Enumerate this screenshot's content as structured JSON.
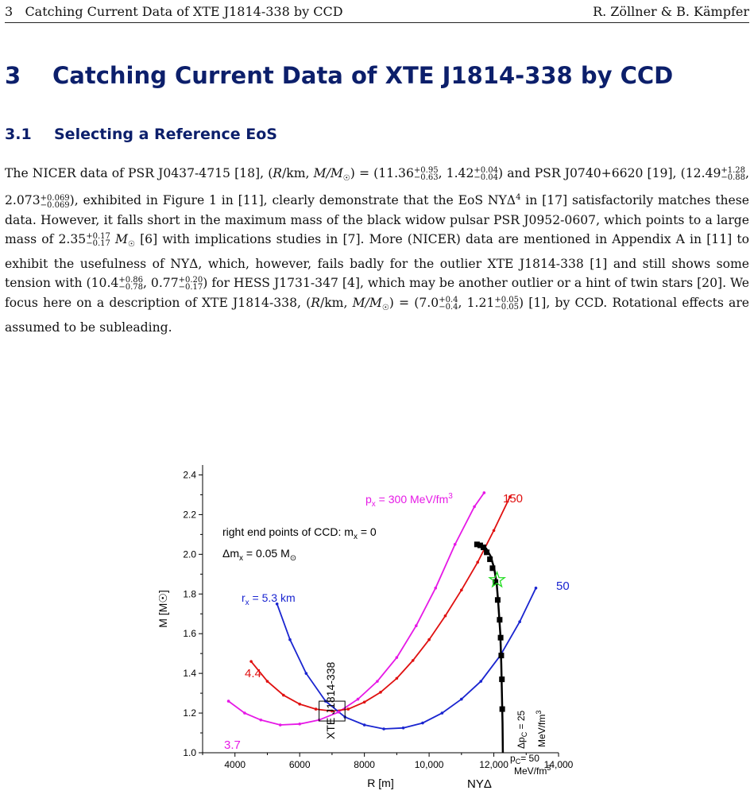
{
  "running_header": {
    "left": "3   Catching Current Data of XTE J1814-338 by CCD",
    "right": "R. Zöllner & B. Kämpfer"
  },
  "section": {
    "number": "3",
    "title": "Catching Current Data of XTE J1814-338 by CCD"
  },
  "subsection": {
    "number": "3.1",
    "title": "Selecting a Reference EoS"
  },
  "paragraph": {
    "t1": "The NICER data of PSR J0437-4715 [18], (",
    "t2": "R",
    "t3": "/km, ",
    "t4": "M/M",
    "t5": "☉",
    "t6": ") = (11.36",
    "s1up": "+0.95",
    "s1dn": "−0.63",
    "t7": ", 1.42",
    "s2up": "+0.04",
    "s2dn": "−0.04",
    "t8": ") and PSR J0740+6620 [19], (12.49",
    "s3up": "+1.28",
    "s3dn": "−0.88",
    "t9": ", 2.073",
    "s4up": "+0.069",
    "s4dn": "−0.069",
    "t10": "), exhibited in Figure 1 in [11], clearly demonstrate that the EoS NYΔ",
    "t10sup": "4",
    "t11": " in [17] satisfactorily matches these data. However, it falls short in the maximum mass of the black widow pulsar PSR J0952-0607, which points to a large mass of 2.35",
    "s5up": "+0.17",
    "s5dn": "−0.17",
    "t12": " M",
    "t13": " [6] with implications studies in [7]. More (NICER) data are mentioned in Appendix A in [11] to exhibit the usefulness of NYΔ, which, however, fails badly for the outlier XTE J1814-338 [1] and still shows some tension with (10.4",
    "s6up": "+0.86",
    "s6dn": "−0.78",
    "t14": ", 0.77",
    "s7up": "+0.20",
    "s7dn": "−0.17",
    "t15": ") for HESS J1731-347 [4], which may be another outlier or a hint of twin stars [20]. We focus here on a description of XTE J1814-338, (",
    "t16": "R",
    "t17": "/km, ",
    "t18": "M/M",
    "t19": "☉",
    "t20": ") = (7.0",
    "s8up": "+0.4",
    "s8dn": "−0.4",
    "t21": ", 1.21",
    "s9up": "+0.05",
    "s9dn": "−0.05",
    "t22": ") [1], by CCD. Rotational effects are assumed to be subleading."
  },
  "chart_data": {
    "type": "line",
    "xlabel": "R [m]",
    "ylabel": "M [M☉]",
    "xlim": [
      3000,
      14000
    ],
    "ylim": [
      1.0,
      2.45
    ],
    "x_ticks": [
      "4000",
      "6000",
      "8000",
      "10,000",
      "12,000",
      "14,000"
    ],
    "x_tick_values": [
      4000,
      6000,
      8000,
      10000,
      12000,
      14000
    ],
    "y_ticks": [
      "1.0",
      "1.2",
      "1.4",
      "1.6",
      "1.8",
      "2.0",
      "2.2",
      "2.4"
    ],
    "y_tick_values": [
      1.0,
      1.2,
      1.4,
      1.6,
      1.8,
      2.0,
      2.2,
      2.4
    ],
    "grid": false,
    "colors": {
      "magenta": "#e619e6",
      "red": "#e01010",
      "blue": "#1a25d0",
      "black": "#000000",
      "star": "#22dd22"
    },
    "series": [
      {
        "color": "magenta",
        "x": [
          3800,
          4300,
          4800,
          5400,
          6000,
          6600,
          7200,
          7800,
          8400,
          9000,
          9600,
          10200,
          10800,
          11400,
          11700
        ],
        "y": [
          1.26,
          1.2,
          1.165,
          1.14,
          1.145,
          1.165,
          1.205,
          1.27,
          1.36,
          1.48,
          1.64,
          1.83,
          2.05,
          2.24,
          2.31
        ]
      },
      {
        "color": "red",
        "x": [
          4500,
          5000,
          5500,
          6000,
          6500,
          7000,
          7500,
          8000,
          8500,
          9000,
          9500,
          10000,
          10500,
          11000,
          11500,
          12000,
          12500
        ],
        "y": [
          1.46,
          1.36,
          1.29,
          1.245,
          1.22,
          1.21,
          1.22,
          1.255,
          1.305,
          1.375,
          1.465,
          1.57,
          1.69,
          1.82,
          1.96,
          2.12,
          2.29
        ]
      },
      {
        "color": "blue",
        "x": [
          5300,
          5700,
          6200,
          6800,
          7400,
          8000,
          8600,
          9200,
          9800,
          10400,
          11000,
          11600,
          12200,
          12800,
          13300
        ],
        "y": [
          1.75,
          1.57,
          1.4,
          1.26,
          1.18,
          1.14,
          1.12,
          1.125,
          1.15,
          1.2,
          1.27,
          1.36,
          1.49,
          1.66,
          1.83
        ]
      },
      {
        "color": "black",
        "x": [
          12280,
          12270,
          12250,
          12230,
          12200,
          12140,
          12090,
          12010,
          11900,
          11760,
          11600,
          11450
        ],
        "y": [
          1.0,
          1.15,
          1.3,
          1.45,
          1.6,
          1.75,
          1.85,
          1.93,
          1.99,
          2.03,
          2.045,
          2.05
        ]
      }
    ],
    "black_markers": {
      "x": [
        12260,
        12250,
        12230,
        12210,
        12180,
        12120,
        12050,
        11960,
        11880,
        11780,
        11680,
        11580,
        11480
      ],
      "y": [
        1.22,
        1.37,
        1.49,
        1.58,
        1.67,
        1.77,
        1.86,
        1.93,
        1.975,
        2.01,
        2.035,
        2.045,
        2.05
      ]
    },
    "star": {
      "x": 12100,
      "y": 1.87
    },
    "box": {
      "x": [
        6600,
        7400
      ],
      "y": [
        1.16,
        1.26
      ]
    },
    "annotations": {
      "px_label": "p",
      "px_sub": "x",
      "px_rest": " = 300 MeV/fm",
      "px_sup": "3",
      "l150": "150",
      "l50": "50",
      "right_end": "right end points of CCD: m",
      "right_end_sub": "x",
      "right_end_rest": " = 0",
      "dm_label": "Δm",
      "dm_sub": "x",
      "dm_rest": " = 0.05 M",
      "dm_sun": "⊙",
      "rx_label": "r",
      "rx_sub": "x",
      "rx_rest": " = 5.3 km",
      "l44": "4.4",
      "l37": "3.7",
      "xte": "XTE J1814-338",
      "dpc": "Δp",
      "dpc_sub": "C",
      "dpc_rest": " = 25",
      "dpc_unit": "MeV/fm",
      "dpc_unit_sup": "3",
      "pc": "p",
      "pc_sub": "C",
      "pc_rest": "= 50",
      "pc_unit": "MeV/fm",
      "pc_unit_sup": "3",
      "nyd": "NYΔ"
    }
  }
}
